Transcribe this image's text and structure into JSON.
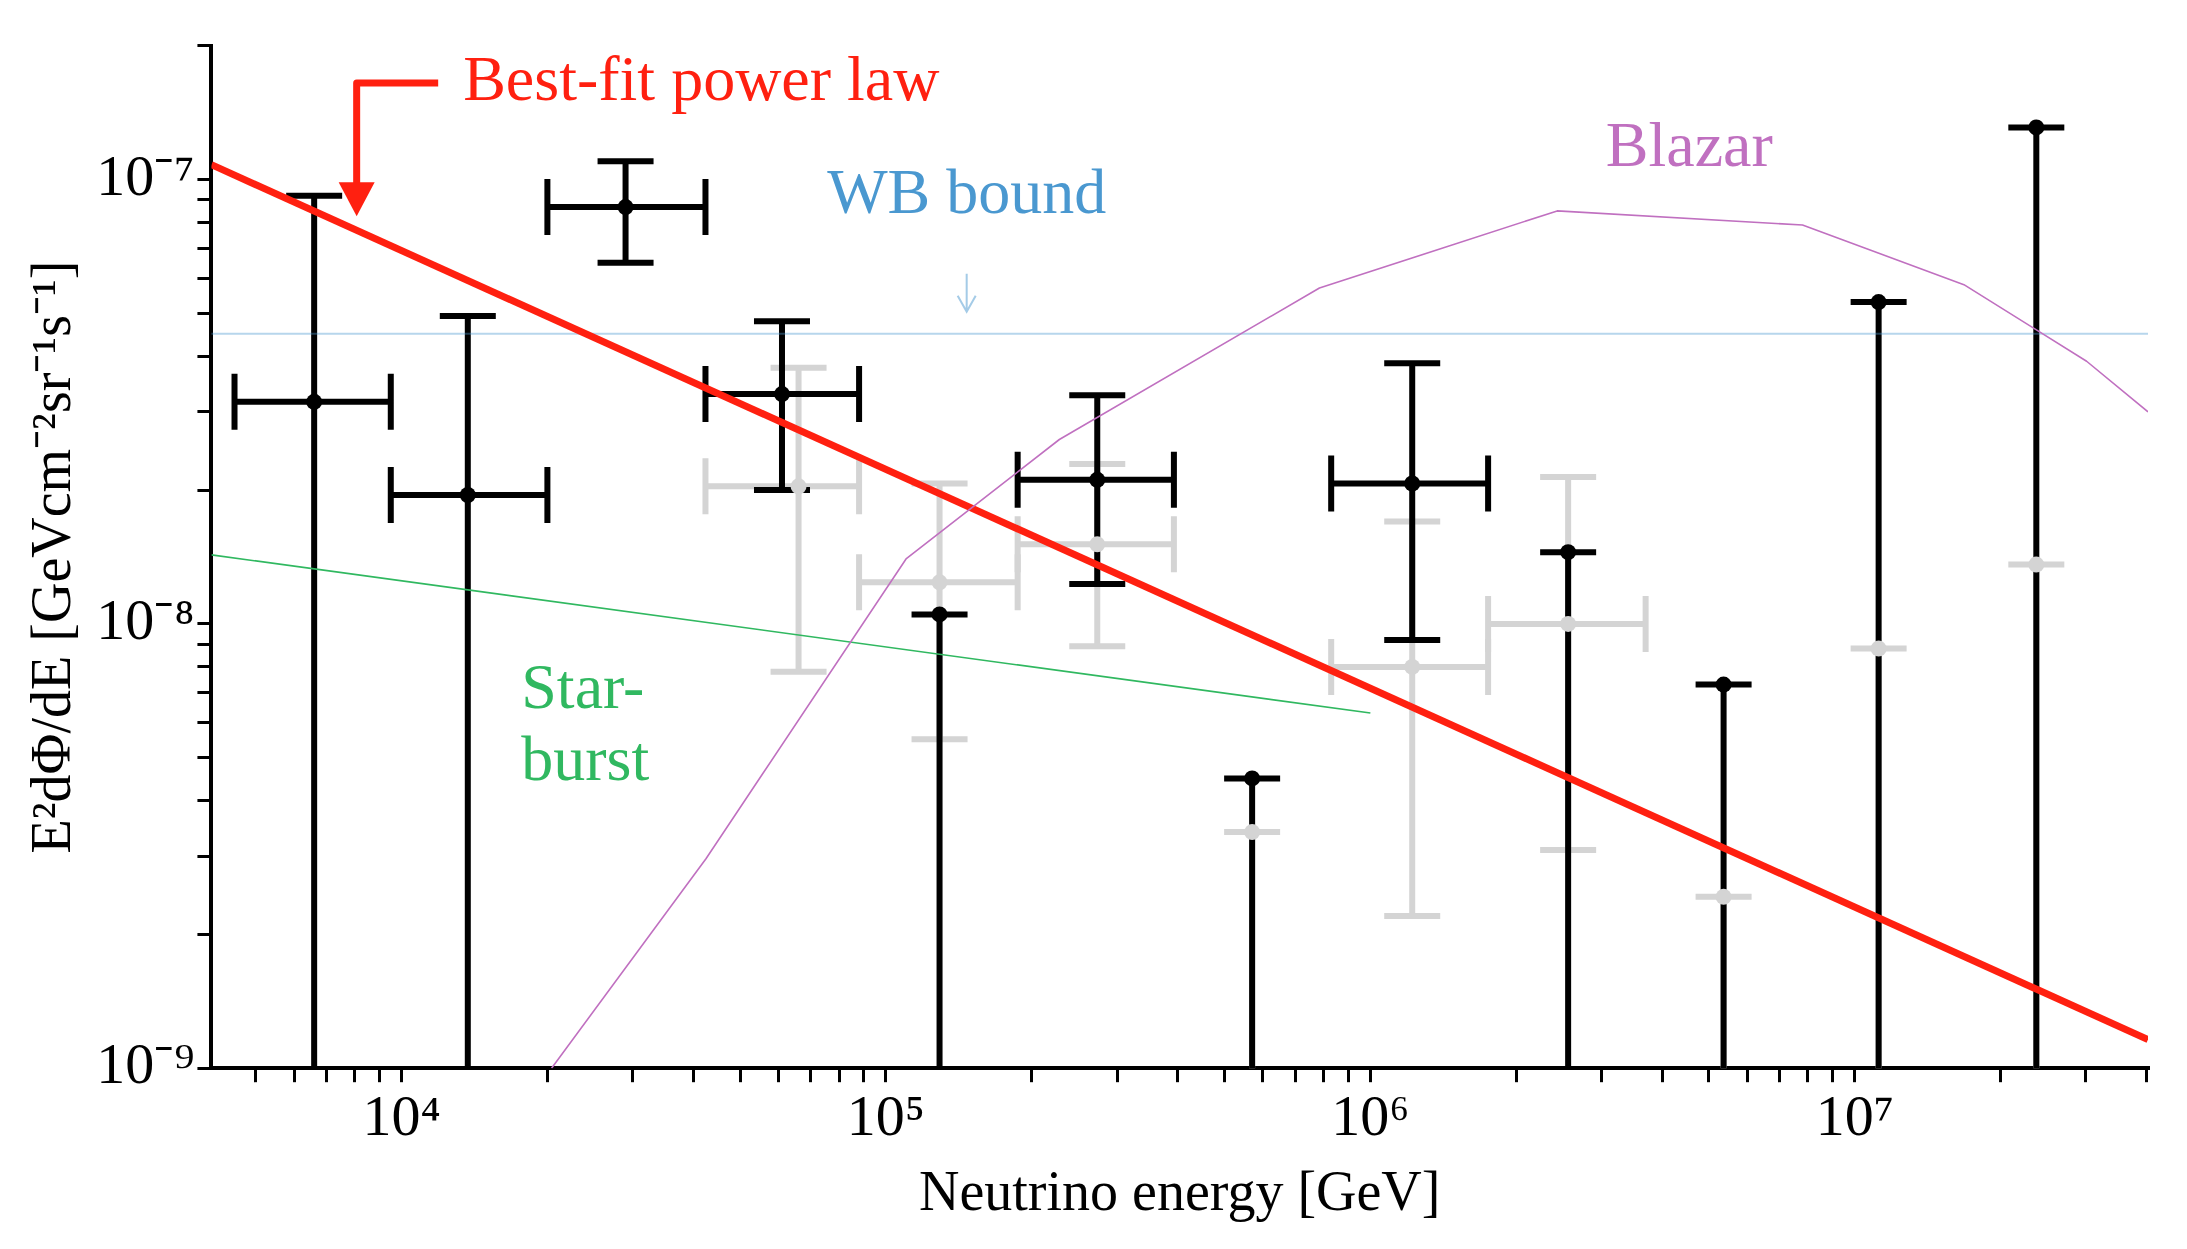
{
  "chart_data": {
    "type": "scatter",
    "xlabel": "Neutrino energy [GeV]",
    "ylabel": "E²dΦ/dE [GeVcm⁻²sr⁻¹s⁻¹]",
    "log": "xy",
    "grid": false,
    "legend": false,
    "marker": "circle",
    "xlim": [
      4050,
      40300000
    ],
    "ylim": [
      1e-09,
      2e-07
    ],
    "xticks": [
      {
        "value": 5000,
        "label": null
      },
      {
        "value": 6000,
        "label": null
      },
      {
        "value": 7000,
        "label": null
      },
      {
        "value": 8000,
        "label": null
      },
      {
        "value": 9000,
        "label": null
      },
      {
        "value": 10000,
        "label": "10⁴"
      },
      {
        "value": 20000,
        "label": null
      },
      {
        "value": 30000,
        "label": null
      },
      {
        "value": 40000,
        "label": null
      },
      {
        "value": 50000,
        "label": null
      },
      {
        "value": 60000,
        "label": null
      },
      {
        "value": 70000,
        "label": null
      },
      {
        "value": 80000,
        "label": null
      },
      {
        "value": 90000,
        "label": null
      },
      {
        "value": 100000,
        "label": "10⁵"
      },
      {
        "value": 200000,
        "label": null
      },
      {
        "value": 300000,
        "label": null
      },
      {
        "value": 400000,
        "label": null
      },
      {
        "value": 500000,
        "label": null
      },
      {
        "value": 600000,
        "label": null
      },
      {
        "value": 700000,
        "label": null
      },
      {
        "value": 800000,
        "label": null
      },
      {
        "value": 900000,
        "label": null
      },
      {
        "value": 1000000,
        "label": "10⁶"
      },
      {
        "value": 2000000,
        "label": null
      },
      {
        "value": 3000000,
        "label": null
      },
      {
        "value": 4000000,
        "label": null
      },
      {
        "value": 5000000,
        "label": null
      },
      {
        "value": 6000000,
        "label": null
      },
      {
        "value": 7000000,
        "label": null
      },
      {
        "value": 8000000,
        "label": null
      },
      {
        "value": 9000000,
        "label": null
      },
      {
        "value": 10000000,
        "label": "10⁷"
      },
      {
        "value": 20000000,
        "label": null
      },
      {
        "value": 30000000,
        "label": null
      },
      {
        "value": 40000000,
        "label": null
      }
    ],
    "yticks": [
      {
        "value": 1e-09,
        "label": "10⁻⁹"
      },
      {
        "value": 2e-09,
        "label": null
      },
      {
        "value": 3e-09,
        "label": null
      },
      {
        "value": 4e-09,
        "label": null
      },
      {
        "value": 5e-09,
        "label": null
      },
      {
        "value": 6e-09,
        "label": null
      },
      {
        "value": 7e-09,
        "label": null
      },
      {
        "value": 8e-09,
        "label": null
      },
      {
        "value": 9e-09,
        "label": null
      },
      {
        "value": 1e-08,
        "label": "10⁻⁸"
      },
      {
        "value": 2e-08,
        "label": null
      },
      {
        "value": 3e-08,
        "label": null
      },
      {
        "value": 4e-08,
        "label": null
      },
      {
        "value": 5e-08,
        "label": null
      },
      {
        "value": 6e-08,
        "label": null
      },
      {
        "value": 7e-08,
        "label": null
      },
      {
        "value": 8e-08,
        "label": null
      },
      {
        "value": 9e-08,
        "label": null
      },
      {
        "value": 1e-07,
        "label": "10⁻⁷"
      },
      {
        "value": 2e-07,
        "label": null
      }
    ],
    "ref_lines": [
      {
        "axis": "y",
        "value": 4.5e-08,
        "label": "WB bound",
        "color": "#4a98d0"
      }
    ],
    "series": [
      {
        "name": "Blazar",
        "type": "line",
        "marker": "none",
        "color": "#c070c0",
        "x": [
          20400,
          42500,
          110000,
          228000,
          785000,
          2430000,
          7800000,
          16800000,
          30100000,
          40300000
        ],
        "values": [
          1e-09,
          2.96e-09,
          1.4e-08,
          2.6e-08,
          5.7e-08,
          8.5e-08,
          7.9e-08,
          5.8e-08,
          3.9e-08,
          3e-08
        ]
      },
      {
        "name": "Star-\nburst",
        "type": "line",
        "marker": "none",
        "color": "#30b860",
        "x": [
          4050,
          1000000
        ],
        "values": [
          1.43e-08,
          6.3e-09
        ]
      },
      {
        "type": "scatter",
        "color": "#d4d4d4",
        "x": [
          66000,
          129000,
          273000,
          570000,
          1220000,
          2560000,
          5360000,
          11200000,
          23700000
        ],
        "values": [
          2.04e-08,
          1.24e-08,
          1.51e-08,
          3.4e-09,
          8e-09,
          1e-08,
          2.43e-09,
          8.8e-09,
          1.36e-08
        ],
        "errors": [
          [
            7.8e-09,
            3.77e-08
          ],
          [
            5.5e-09,
            2.07e-08
          ],
          [
            8.9e-09,
            2.29e-08
          ],
          [
            1e-09,
            3.4e-09
          ],
          [
            2.2e-09,
            1.7e-08
          ],
          [
            3.1e-09,
            2.14e-08
          ],
          [
            1e-09,
            2.43e-09
          ],
          [
            1e-09,
            8.8e-09
          ],
          [
            1e-09,
            1.36e-08
          ]
        ],
        "xerrors": [
          [
            42400,
            88000
          ],
          [
            88000,
            187000
          ],
          [
            187000,
            393000
          ],
          null,
          [
            830000,
            1750000
          ],
          [
            1750000,
            3700000
          ],
          null,
          null,
          null
        ]
      },
      {
        "type": "scatter",
        "color": "#000000",
        "x": [
          6600,
          13700,
          29000,
          61000,
          129000,
          273000,
          570000,
          1220000,
          2560000,
          5360000,
          11200000,
          23700000
        ],
        "values": [
          3.16e-08,
          1.95e-08,
          8.67e-08,
          3.29e-08,
          1.05e-08,
          2.11e-08,
          4.49e-09,
          2.07e-08,
          1.45e-08,
          7.3e-09,
          5.3e-08,
          1.31e-07
        ],
        "errors": [
          [
            1e-09,
            9.2e-08
          ],
          [
            1e-09,
            4.93e-08
          ],
          [
            6.5e-08,
            1.1e-07
          ],
          [
            2e-08,
            4.8e-08
          ],
          [
            1e-09,
            1.05e-08
          ],
          [
            1.23e-08,
            3.27e-08
          ],
          [
            1e-09,
            4.49e-09
          ],
          [
            9.2e-09,
            3.86e-08
          ],
          [
            1e-09,
            1.45e-08
          ],
          [
            1e-09,
            7.3e-09
          ],
          [
            1e-09,
            5.3e-08
          ],
          [
            1e-09,
            1.31e-07
          ]
        ],
        "xerrors": [
          [
            4520,
            9500
          ],
          [
            9500,
            20000
          ],
          [
            20000,
            42400
          ],
          [
            42400,
            88000
          ],
          null,
          [
            187000,
            393000
          ],
          null,
          [
            830000,
            1750000
          ],
          null,
          null,
          null,
          null
        ]
      },
      {
        "name": "Best-fit power law",
        "type": "line",
        "marker": "none",
        "color": "#ff2010",
        "x": [
          4050,
          40300000
        ],
        "values": [
          1.08e-07,
          1.16e-09
        ]
      }
    ]
  }
}
